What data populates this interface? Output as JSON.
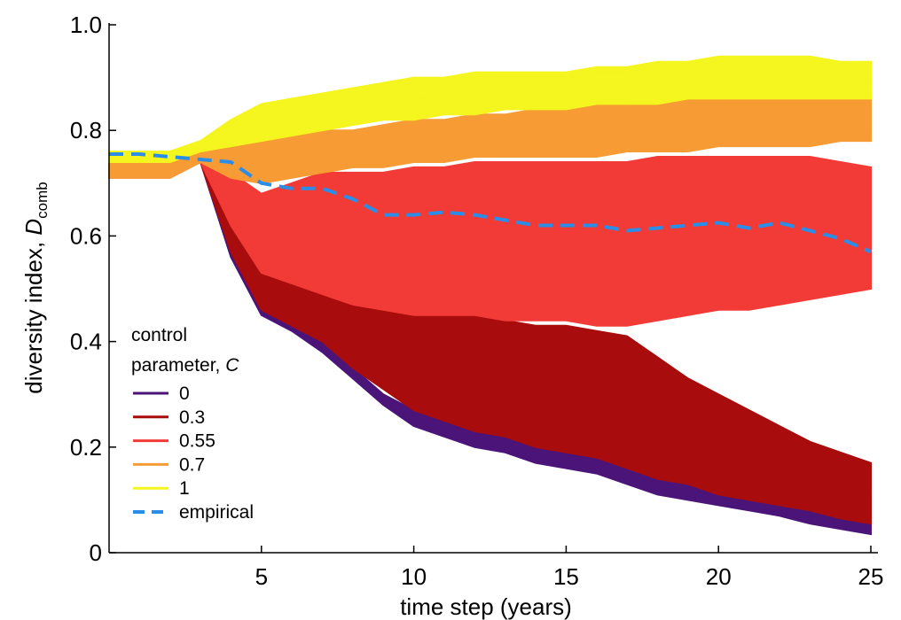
{
  "chart_data": {
    "type": "line",
    "xlabel": "time step (years)",
    "ylabel_main": "diversity index, ",
    "ylabel_var": "D",
    "ylabel_sub": "comb",
    "xlim": [
      0,
      25
    ],
    "ylim": [
      0,
      1.0
    ],
    "xticks": [
      5,
      10,
      15,
      20,
      25
    ],
    "yticks": [
      {
        "value": 0,
        "label": "0"
      },
      {
        "value": 0.2,
        "label": "0.2"
      },
      {
        "value": 0.4,
        "label": "0.4"
      },
      {
        "value": 0.6,
        "label": "0.6"
      },
      {
        "value": 0.8,
        "label": "0.8"
      },
      {
        "value": 1.0,
        "label": "1.0"
      }
    ],
    "grid": false,
    "legend_position": "bottom-left",
    "legend": {
      "title_line1": "control",
      "title_line2": "parameter, ",
      "title_var": "C",
      "entries": [
        {
          "label": "0",
          "color": "#4b1478",
          "style": "solid"
        },
        {
          "label": "0.3",
          "color": "#a80c0c",
          "style": "solid"
        },
        {
          "label": "0.55",
          "color": "#f23b36",
          "style": "solid"
        },
        {
          "label": "0.7",
          "color": "#f79b35",
          "style": "solid"
        },
        {
          "label": "1",
          "color": "#f5f51f",
          "style": "solid"
        },
        {
          "label": "empirical",
          "color": "#2a8ee8",
          "style": "dashed"
        }
      ]
    },
    "x": [
      0,
      1,
      2,
      3,
      4,
      5,
      6,
      7,
      8,
      9,
      10,
      11,
      12,
      13,
      14,
      15,
      16,
      17,
      18,
      19,
      20,
      21,
      22,
      23,
      24,
      25
    ],
    "series": [
      {
        "name": "0",
        "color": "#4b1478",
        "band_lower": [
          0.72,
          0.72,
          0.72,
          0.74,
          0.56,
          0.45,
          0.42,
          0.38,
          0.33,
          0.28,
          0.24,
          0.22,
          0.2,
          0.19,
          0.17,
          0.16,
          0.15,
          0.13,
          0.11,
          0.1,
          0.09,
          0.08,
          0.07,
          0.055,
          0.045,
          0.035
        ],
        "band_upper": [
          0.76,
          0.76,
          0.76,
          0.76,
          0.6,
          0.49,
          0.45,
          0.4,
          0.35,
          0.3,
          0.27,
          0.25,
          0.23,
          0.22,
          0.21,
          0.2,
          0.19,
          0.17,
          0.15,
          0.14,
          0.12,
          0.11,
          0.1,
          0.09,
          0.08,
          0.07
        ]
      },
      {
        "name": "0.3",
        "color": "#a80c0c",
        "band_lower": [
          0.72,
          0.72,
          0.72,
          0.74,
          0.57,
          0.46,
          0.43,
          0.4,
          0.35,
          0.31,
          0.27,
          0.25,
          0.23,
          0.22,
          0.2,
          0.19,
          0.18,
          0.16,
          0.14,
          0.13,
          0.11,
          0.1,
          0.09,
          0.08,
          0.065,
          0.055
        ],
        "band_upper": [
          0.76,
          0.76,
          0.76,
          0.76,
          0.66,
          0.56,
          0.53,
          0.51,
          0.49,
          0.48,
          0.47,
          0.46,
          0.45,
          0.44,
          0.43,
          0.43,
          0.42,
          0.41,
          0.37,
          0.33,
          0.3,
          0.27,
          0.24,
          0.21,
          0.19,
          0.17
        ]
      },
      {
        "name": "0.55",
        "color": "#f23b36",
        "band_lower": [
          0.71,
          0.71,
          0.71,
          0.74,
          0.62,
          0.53,
          0.51,
          0.49,
          0.47,
          0.46,
          0.45,
          0.45,
          0.45,
          0.44,
          0.44,
          0.44,
          0.43,
          0.43,
          0.44,
          0.45,
          0.46,
          0.46,
          0.47,
          0.48,
          0.49,
          0.5
        ],
        "band_upper": [
          0.75,
          0.75,
          0.75,
          0.77,
          0.72,
          0.68,
          0.7,
          0.72,
          0.72,
          0.72,
          0.73,
          0.73,
          0.74,
          0.74,
          0.74,
          0.74,
          0.74,
          0.74,
          0.75,
          0.75,
          0.75,
          0.75,
          0.75,
          0.75,
          0.74,
          0.73
        ]
      },
      {
        "name": "0.7",
        "color": "#f79b35",
        "band_lower": [
          0.71,
          0.71,
          0.71,
          0.74,
          0.71,
          0.7,
          0.71,
          0.72,
          0.73,
          0.73,
          0.74,
          0.74,
          0.75,
          0.75,
          0.75,
          0.75,
          0.75,
          0.76,
          0.76,
          0.76,
          0.77,
          0.77,
          0.77,
          0.77,
          0.78,
          0.78
        ],
        "band_upper": [
          0.75,
          0.75,
          0.75,
          0.77,
          0.77,
          0.78,
          0.79,
          0.8,
          0.8,
          0.81,
          0.82,
          0.82,
          0.83,
          0.83,
          0.84,
          0.84,
          0.85,
          0.85,
          0.86,
          0.86,
          0.86,
          0.87,
          0.87,
          0.87,
          0.87,
          0.87
        ]
      },
      {
        "name": "1",
        "color": "#f5f51f",
        "band_lower": [
          0.74,
          0.74,
          0.74,
          0.76,
          0.77,
          0.78,
          0.79,
          0.8,
          0.81,
          0.82,
          0.82,
          0.83,
          0.83,
          0.84,
          0.84,
          0.84,
          0.85,
          0.85,
          0.85,
          0.86,
          0.86,
          0.86,
          0.86,
          0.86,
          0.86,
          0.86
        ],
        "band_upper": [
          0.76,
          0.76,
          0.76,
          0.78,
          0.82,
          0.85,
          0.86,
          0.87,
          0.88,
          0.89,
          0.9,
          0.9,
          0.91,
          0.91,
          0.91,
          0.91,
          0.92,
          0.92,
          0.93,
          0.93,
          0.94,
          0.94,
          0.94,
          0.94,
          0.93,
          0.93
        ]
      },
      {
        "name": "empirical",
        "color": "#2a8ee8",
        "style": "dashed",
        "values": [
          0.755,
          0.755,
          0.75,
          0.745,
          0.74,
          0.7,
          0.69,
          0.69,
          0.67,
          0.64,
          0.64,
          0.645,
          0.64,
          0.63,
          0.62,
          0.62,
          0.62,
          0.61,
          0.615,
          0.62,
          0.625,
          0.615,
          0.625,
          0.61,
          0.595,
          0.57
        ]
      }
    ]
  }
}
